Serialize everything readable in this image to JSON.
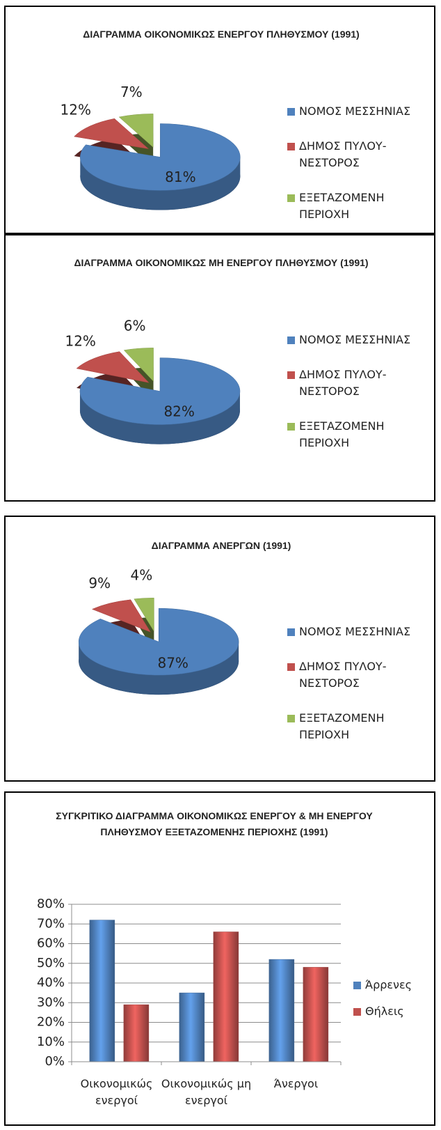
{
  "chart_data": [
    {
      "type": "pie",
      "title": "ΔΙΑΓΡΑΜΜΑ ΟΙΚΟΝΟΜΙΚΩΣ ΕΝΕΡΓΟΥ ΠΛΗΘΥΣΜΟΥ (1991)",
      "categories": [
        "ΝΟΜΟΣ ΜΕΣΣΗΝΙΑΣ",
        "ΔΗΜΟΣ ΠΥΛΟΥ-ΝΕΣΤΟΡΟΣ",
        "ΕΞΕΤΑΖΟΜΕΝΗ ΠΕΡΙΟΧΗ"
      ],
      "values": [
        81,
        12,
        7
      ],
      "value_labels": [
        "81%",
        "12%",
        "7%"
      ],
      "colors": [
        "#4f81bd",
        "#c0504d",
        "#9bbb59"
      ],
      "legend": "right"
    },
    {
      "type": "pie",
      "title": "ΔΙΑΓΡΑΜΜΑ ΟΙΚΟΝΟΜΙΚΩΣ ΜΗ ΕΝΕΡΓΟΥ ΠΛΗΘΥΣΜΟΥ (1991)",
      "categories": [
        "ΝΟΜΟΣ ΜΕΣΣΗΝΙΑΣ",
        "ΔΗΜΟΣ ΠΥΛΟΥ-ΝΕΣΤΟΡΟΣ",
        "ΕΞΕΤΑΖΟΜΕΝΗ ΠΕΡΙΟΧΗ"
      ],
      "values": [
        82,
        12,
        6
      ],
      "value_labels": [
        "82%",
        "12%",
        "6%"
      ],
      "colors": [
        "#4f81bd",
        "#c0504d",
        "#9bbb59"
      ],
      "legend": "right"
    },
    {
      "type": "pie",
      "title": "ΔΙΑΓΡΑΜΜΑ ΑΝΕΡΓΩΝ (1991)",
      "categories": [
        "ΝΟΜΟΣ ΜΕΣΣΗΝΙΑΣ",
        "ΔΗΜΟΣ ΠΥΛΟΥ-ΝΕΣΤΟΡΟΣ",
        "ΕΞΕΤΑΖΟΜΕΝΗ ΠΕΡΙΟΧΗ"
      ],
      "values": [
        87,
        9,
        4
      ],
      "value_labels": [
        "87%",
        "9%",
        "4%"
      ],
      "colors": [
        "#4f81bd",
        "#c0504d",
        "#9bbb59"
      ],
      "legend": "right"
    },
    {
      "type": "bar",
      "title": "ΣΥΓΚΡΙΤΙΚΟ ΔΙΑΓΡΑΜΜΑ ΟΙΚΟΝΟΜΙΚΩΣ ΕΝΕΡΓΟΥ & ΜΗ ΕΝΕΡΓΟΥ ΠΛΗΘΥΣΜΟΥ ΕΞΕΤΑΖΟΜΕΝΗΣ ΠΕΡΙΟΧΗΣ (1991)",
      "categories": [
        "Οικονομικώς ενεργοί",
        "Οικονομικώς μη ενεργοί",
        "Άνεργοι"
      ],
      "series": [
        {
          "name": "Άρρενες",
          "color": "#4f81bd",
          "values": [
            72,
            35,
            52
          ]
        },
        {
          "name": "Θήλεις",
          "color": "#c0504d",
          "values": [
            29,
            66,
            48
          ]
        }
      ],
      "ylim": [
        0,
        80
      ],
      "yticks": [
        {
          "value": 0,
          "label": "0%"
        },
        {
          "value": 10,
          "label": "10%"
        },
        {
          "value": 20,
          "label": "20%"
        },
        {
          "value": 30,
          "label": "30%"
        },
        {
          "value": 40,
          "label": "40%"
        },
        {
          "value": 50,
          "label": "50%"
        },
        {
          "value": 60,
          "label": "60%"
        },
        {
          "value": 70,
          "label": "70%"
        },
        {
          "value": 80,
          "label": "80%"
        }
      ],
      "grid": true,
      "legend": "right"
    }
  ]
}
